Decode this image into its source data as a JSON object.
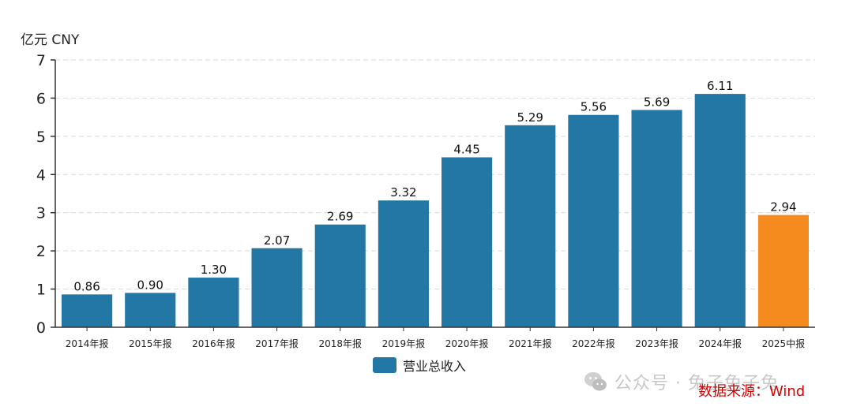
{
  "chart_data": {
    "type": "bar",
    "unit_label": "亿元  CNY",
    "categories": [
      "2014年报",
      "2015年报",
      "2016年报",
      "2017年报",
      "2018年报",
      "2019年报",
      "2020年报",
      "2021年报",
      "2022年报",
      "2023年报",
      "2024年报",
      "2025中报"
    ],
    "series": [
      {
        "name": "营业总收入",
        "values": [
          0.86,
          0.9,
          1.3,
          2.07,
          2.69,
          3.32,
          4.45,
          5.29,
          5.56,
          5.69,
          6.11,
          2.94
        ],
        "data_labels": [
          "0.86",
          "0.90",
          "1.30",
          "2.07",
          "2.69",
          "3.32",
          "4.45",
          "5.29",
          "5.56",
          "5.69",
          "6.11",
          "2.94"
        ]
      }
    ],
    "highlight_index": 11,
    "colors": {
      "bar": "#2277a5",
      "highlight": "#f58a1f",
      "grid": "#d9d9d9",
      "axis": "#333333"
    },
    "ylim": [
      0,
      7
    ],
    "yticks": [
      0,
      1,
      2,
      3,
      4,
      5,
      6,
      7
    ],
    "grid": true,
    "legend_position": "bottom-center"
  },
  "watermark": {
    "text": "公众号 · 兔子兔子兔",
    "icon": "wechat-icon"
  },
  "source_text": "数据来源：Wind"
}
